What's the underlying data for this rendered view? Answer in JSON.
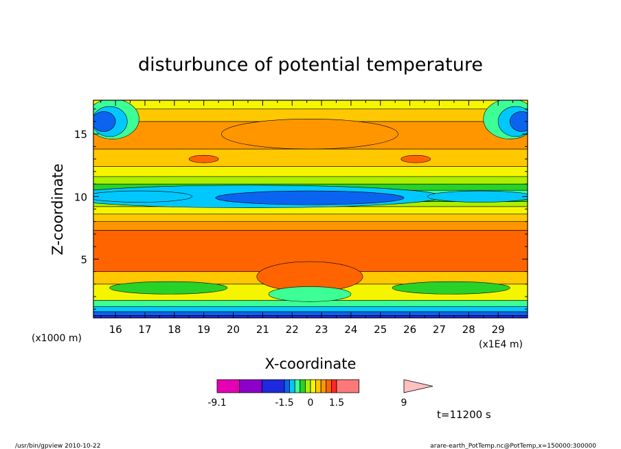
{
  "chart_data": {
    "type": "heatmap",
    "title": "disturbunce of potential temperature",
    "xlabel": "X-coordinate",
    "ylabel": "Z-coordinate",
    "x_unit_label": "(x1000 m)",
    "x_scale_label": "(x1E4 m)",
    "xlim": [
      15.25,
      30.0
    ],
    "ylim": [
      0.3,
      17.7
    ],
    "x_ticks": [
      16,
      17,
      18,
      19,
      20,
      21,
      22,
      23,
      24,
      25,
      26,
      27,
      28,
      29
    ],
    "y_ticks": [
      5,
      10,
      15
    ],
    "colorbar": {
      "labels": [
        {
          "text": "-9.1",
          "value": -9.1
        },
        {
          "text": "-1.5",
          "value": -1.5
        },
        {
          "text": "0",
          "value": 0
        },
        {
          "text": "1.5",
          "value": 1.5
        },
        {
          "text": "9",
          "value": 9
        }
      ],
      "colors": [
        "#e400b4",
        "#8c00c8",
        "#1e28dc",
        "#0a64f0",
        "#00c8ff",
        "#3cff96",
        "#28d228",
        "#aaf000",
        "#f5f500",
        "#ffc800",
        "#ff9600",
        "#ff6400",
        "#ff2828",
        "#ff7878",
        "#ffc0c0"
      ]
    },
    "time_label": "t=11200 s",
    "bands": [
      {
        "z0": 0.3,
        "z1": 0.5,
        "value": -7.5,
        "color": "#1e28dc"
      },
      {
        "z0": 0.5,
        "z1": 0.8,
        "value": -3.0,
        "color": "#0a64f0"
      },
      {
        "z0": 0.8,
        "z1": 1.2,
        "value": -1.0,
        "color": "#00c8ff"
      },
      {
        "z0": 1.2,
        "z1": 1.7,
        "value": -0.5,
        "color": "#3cff96"
      },
      {
        "z0": 1.7,
        "z1": 3.0,
        "value": 0.2,
        "color": "#f5f500"
      },
      {
        "z0": 3.0,
        "z1": 4.0,
        "value": 0.7,
        "color": "#ffc800"
      },
      {
        "z0": 4.0,
        "z1": 7.3,
        "value": 1.3,
        "color": "#ff6400"
      },
      {
        "z0": 7.3,
        "z1": 8.0,
        "value": 0.9,
        "color": "#ff9600"
      },
      {
        "z0": 8.0,
        "z1": 8.6,
        "value": 0.5,
        "color": "#ffc800"
      },
      {
        "z0": 8.6,
        "z1": 9.2,
        "value": 0.1,
        "color": "#f5f500"
      },
      {
        "z0": 9.2,
        "z1": 9.6,
        "value": -0.1,
        "color": "#aaf000"
      },
      {
        "z0": 9.6,
        "z1": 10.0,
        "value": -0.2,
        "color": "#28d228"
      },
      {
        "z0": 10.0,
        "z1": 10.5,
        "value": -0.4,
        "color": "#3cff96"
      },
      {
        "z0": 10.5,
        "z1": 11.0,
        "value": -0.2,
        "color": "#28d228"
      },
      {
        "z0": 11.0,
        "z1": 11.6,
        "value": -0.1,
        "color": "#aaf000"
      },
      {
        "z0": 11.6,
        "z1": 12.4,
        "value": 0.1,
        "color": "#f5f500"
      },
      {
        "z0": 12.4,
        "z1": 13.8,
        "value": 0.5,
        "color": "#ffc800"
      },
      {
        "z0": 13.8,
        "z1": 16.0,
        "value": 0.8,
        "color": "#ff9600"
      },
      {
        "z0": 16.0,
        "z1": 17.0,
        "value": 0.5,
        "color": "#ffc800"
      },
      {
        "z0": 17.0,
        "z1": 17.7,
        "value": 0.1,
        "color": "#f5f500"
      }
    ],
    "blobs": [
      {
        "xc": 20.6,
        "zc": 10.0,
        "rx": 6.5,
        "rz": 0.9,
        "value": -0.8,
        "color": "#00c8ff"
      },
      {
        "xc": 22.6,
        "zc": 9.9,
        "rx": 3.2,
        "rz": 0.55,
        "value": -2.0,
        "color": "#0a64f0"
      },
      {
        "xc": 16.8,
        "zc": 10.0,
        "rx": 1.8,
        "rz": 0.45,
        "value": -0.8,
        "color": "#00c8ff"
      },
      {
        "xc": 28.4,
        "zc": 10.0,
        "rx": 1.8,
        "rz": 0.45,
        "value": -0.8,
        "color": "#00c8ff"
      },
      {
        "xc": 15.9,
        "zc": 16.2,
        "rx": 0.9,
        "rz": 1.6,
        "value": -0.8,
        "color": "#3cff96"
      },
      {
        "xc": 15.8,
        "zc": 16.0,
        "rx": 0.6,
        "rz": 1.2,
        "value": -1.2,
        "color": "#00c8ff"
      },
      {
        "xc": 15.6,
        "zc": 16.0,
        "rx": 0.4,
        "rz": 0.8,
        "value": -2.0,
        "color": "#0a64f0"
      },
      {
        "xc": 29.4,
        "zc": 16.2,
        "rx": 0.9,
        "rz": 1.6,
        "value": -0.8,
        "color": "#3cff96"
      },
      {
        "xc": 29.6,
        "zc": 16.0,
        "rx": 0.6,
        "rz": 1.2,
        "value": -1.2,
        "color": "#00c8ff"
      },
      {
        "xc": 29.8,
        "zc": 16.0,
        "rx": 0.4,
        "rz": 0.8,
        "value": -2.0,
        "color": "#0a64f0"
      },
      {
        "xc": 22.6,
        "zc": 15.0,
        "rx": 3.0,
        "rz": 1.2,
        "value": 1.0,
        "color": "#ff9600"
      },
      {
        "xc": 19.0,
        "zc": 13.0,
        "rx": 0.5,
        "rz": 0.3,
        "value": 1.6,
        "color": "#ff6400"
      },
      {
        "xc": 26.2,
        "zc": 13.0,
        "rx": 0.5,
        "rz": 0.3,
        "value": 1.6,
        "color": "#ff6400"
      },
      {
        "xc": 22.6,
        "zc": 3.6,
        "rx": 1.8,
        "rz": 1.2,
        "value": 1.2,
        "color": "#ff6400"
      },
      {
        "xc": 17.8,
        "zc": 2.7,
        "rx": 2.0,
        "rz": 0.5,
        "value": -0.5,
        "color": "#28d228"
      },
      {
        "xc": 27.4,
        "zc": 2.7,
        "rx": 2.0,
        "rz": 0.5,
        "value": -0.5,
        "color": "#28d228"
      },
      {
        "xc": 22.6,
        "zc": 2.2,
        "rx": 1.4,
        "rz": 0.6,
        "value": -0.6,
        "color": "#3cff96"
      }
    ]
  },
  "footer": {
    "left": "/usr/bin/gpview   2010-10-22",
    "right": "arare-earth_PotTemp.nc@PotTemp,x=150000:300000"
  }
}
